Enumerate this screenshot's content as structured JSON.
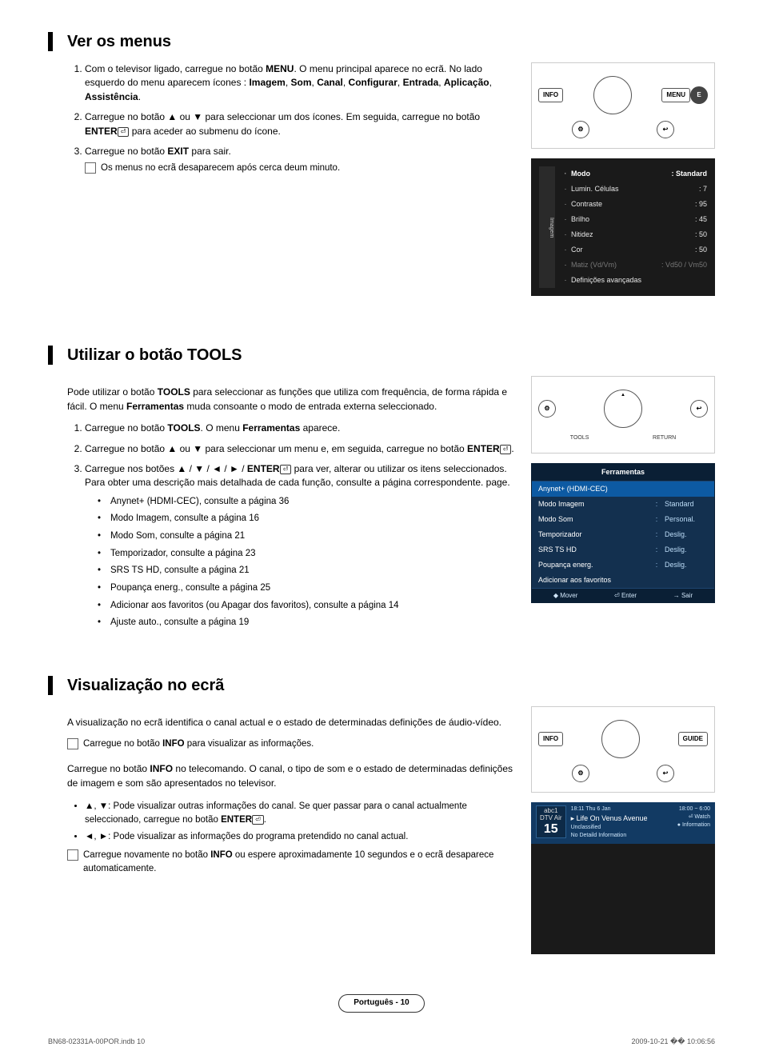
{
  "section1": {
    "title": "Ver os menus",
    "steps": [
      {
        "pre": "Com o televisor ligado, carregue no botão ",
        "b1": "MENU",
        "mid": ". O menu principal aparece no ecrã. No lado esquerdo do menu aparecem ícones : ",
        "b2": "Imagem",
        "c1": ", ",
        "b3": "Som",
        "c2": ", ",
        "b4": "Canal",
        "c3": ", ",
        "b5": "Configurar",
        "c4": ", ",
        "b6": "Entrada",
        "c5": ", ",
        "b7": "Aplicação",
        "c6": ", ",
        "b8": "Assistência",
        "post": "."
      },
      {
        "pre": "Carregue no botão ▲ ou ▼ para seleccionar um dos ícones. Em seguida, carregue no botão ",
        "b1": "ENTER",
        "post": " para aceder ao submenu do ícone."
      },
      {
        "pre": "Carregue no botão ",
        "b1": "EXIT",
        "post": " para sair."
      }
    ],
    "note": "Os menus no ecrã desaparecem após cerca deum minuto.",
    "remote": {
      "info": "INFO",
      "menu": "MENU"
    },
    "osd": {
      "side": "Imagem",
      "rows": [
        {
          "lbl": "Modo",
          "val": ": Standard",
          "hl": true
        },
        {
          "lbl": "Lumin. Células",
          "val": ": 7"
        },
        {
          "lbl": "Contraste",
          "val": ": 95"
        },
        {
          "lbl": "Brilho",
          "val": ": 45"
        },
        {
          "lbl": "Nitidez",
          "val": ": 50"
        },
        {
          "lbl": "Cor",
          "val": ": 50"
        },
        {
          "lbl": "Matiz (Vd/Vm)",
          "val": ": Vd50 / Vm50",
          "dim": true
        },
        {
          "lbl": "Definições avançadas",
          "val": ""
        }
      ]
    }
  },
  "section2": {
    "title": "Utilizar o botão TOOLS",
    "intro_pre": "Pode utilizar o botão ",
    "intro_b1": "TOOLS",
    "intro_mid": " para seleccionar as funções que utiliza com frequência, de forma rápida e fácil. O menu ",
    "intro_b2": "Ferramentas",
    "intro_post": " muda consoante o modo de entrada externa seleccionado.",
    "steps": [
      {
        "pre": "Carregue no botão ",
        "b1": "TOOLS",
        "mid": ". O menu ",
        "b2": "Ferramentas",
        "post": " aparece."
      },
      {
        "pre": "Carregue no botão ▲ ou ▼ para seleccionar um menu e, em seguida, carregue no botão ",
        "b1": "ENTER",
        "post": "."
      },
      {
        "pre": "Carregue nos botões ▲ / ▼ / ◄ / ► / ",
        "b1": "ENTER",
        "post": " para ver, alterar ou utilizar os itens seleccionados. Para obter uma descrição mais detalhada de cada função, consulte a página correspondente. page."
      }
    ],
    "refs": [
      "Anynet+ (HDMI-CEC), consulte a página 36",
      "Modo Imagem, consulte a página 16",
      "Modo Som, consulte a página 21",
      "Temporizador, consulte a página 23",
      "SRS TS HD, consulte a página 21",
      "Poupança energ., consulte a página 25",
      "Adicionar aos favoritos (ou Apagar dos favoritos), consulte a página 14",
      "Ajuste auto., consulte a página 19"
    ],
    "remote": {
      "tools": "TOOLS",
      "return": "RETURN"
    },
    "tools": {
      "title": "Ferramentas",
      "rows": [
        {
          "l": "Anynet+ (HDMI-CEC)",
          "r": "",
          "hl": true,
          "full": true
        },
        {
          "l": "Modo Imagem",
          "r": "Standard"
        },
        {
          "l": "Modo Som",
          "r": "Personal."
        },
        {
          "l": "Temporizador",
          "r": "Deslig."
        },
        {
          "l": "SRS TS HD",
          "r": "Deslig."
        },
        {
          "l": "Poupança energ.",
          "r": "Deslig."
        },
        {
          "l": "Adicionar aos favoritos",
          "r": "",
          "full": true
        }
      ],
      "footer": [
        "◆ Mover",
        "⏎ Enter",
        "→ Sair"
      ]
    }
  },
  "section3": {
    "title": "Visualização no ecrã",
    "intro": "A visualização no ecrã identifica o canal actual e o estado de determinadas definições de áudio-vídeo.",
    "note1_pre": "Carregue no botão ",
    "note1_b": "INFO",
    "note1_post": " para visualizar as informações.",
    "para_pre": "Carregue no botão ",
    "para_b": "INFO",
    "para_post": " no telecomando. O canal, o tipo de som e o estado de determinadas definições de imagem e som são apresentados no televisor.",
    "bullets": [
      {
        "pre": "▲, ▼: Pode visualizar outras informações do canal. Se quer passar para o canal actualmente seleccionado, carregue no botão ",
        "b": "ENTER",
        "post": "."
      },
      {
        "pre": "◄, ►: Pode visualizar as informações do programa pretendido no canal actual.",
        "b": "",
        "post": ""
      }
    ],
    "note2_pre": "Carregue novamente no botão ",
    "note2_b": "INFO",
    "note2_post": " ou espere aproximadamente 10 segundos e o ecrã desaparece automaticamente.",
    "remote": {
      "info": "INFO",
      "guide": "GUIDE"
    },
    "infobar": {
      "src": "abc1",
      "type": "DTV Air",
      "num": "15",
      "time": "18:11 Thu 6 Jan",
      "prog": "Life On Venus Avenue",
      "class": "Unclassified",
      "det": "No Detaild Information",
      "range": "18:00 ~ 6:00",
      "watch": "⏎ Watch",
      "infoicon": "● Information"
    }
  },
  "page_num": "Português - 10",
  "footer_left": "BN68-02331A-00POR.indb   10",
  "footer_right": "2009-10-21   �� 10:06:56",
  "colors": {
    "osd_bg": "#1a1a1a",
    "tools_bg": "#13304f",
    "tools_hl": "#0d5aa3",
    "info_bg": "#123a63"
  }
}
